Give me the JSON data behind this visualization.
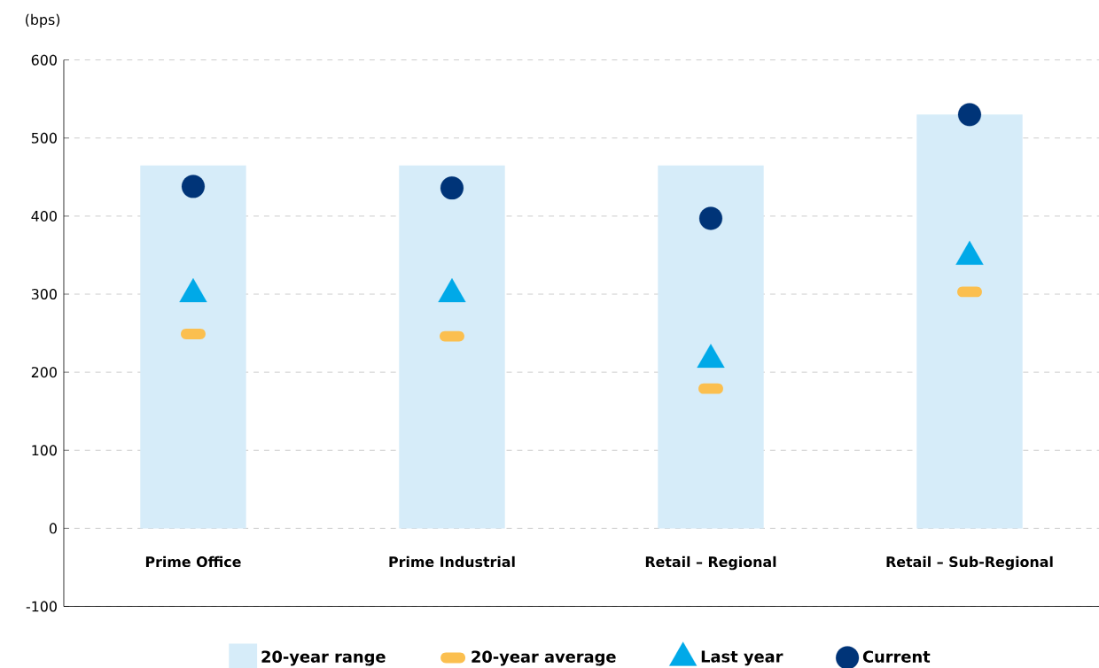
{
  "chart_data": {
    "type": "bar",
    "ylabel": "(bps)",
    "categories": [
      "Prime Office",
      "Prime Industrial",
      "Retail – Regional",
      "Retail – Sub-Regional"
    ],
    "series": [
      {
        "name": "20-year range",
        "color": "#d6ecf9",
        "values": [
          465,
          465,
          465,
          530
        ]
      },
      {
        "name": "20-year average",
        "type": "scatter",
        "color": "#fbbf4f",
        "values": [
          249,
          246,
          179,
          303
        ]
      },
      {
        "name": "Last year",
        "type": "scatter",
        "marker": "triangle",
        "color": "#00a9e8",
        "values": [
          300,
          300,
          216,
          348
        ]
      },
      {
        "name": "Current",
        "type": "scatter",
        "marker": "circle",
        "color": "#003478",
        "values": [
          438,
          436,
          397,
          530
        ]
      }
    ],
    "ylim": [
      -100,
      600
    ],
    "yticks": [
      -100,
      0,
      100,
      200,
      300,
      400,
      500,
      600
    ],
    "grid": "y",
    "legend": "bottom"
  }
}
